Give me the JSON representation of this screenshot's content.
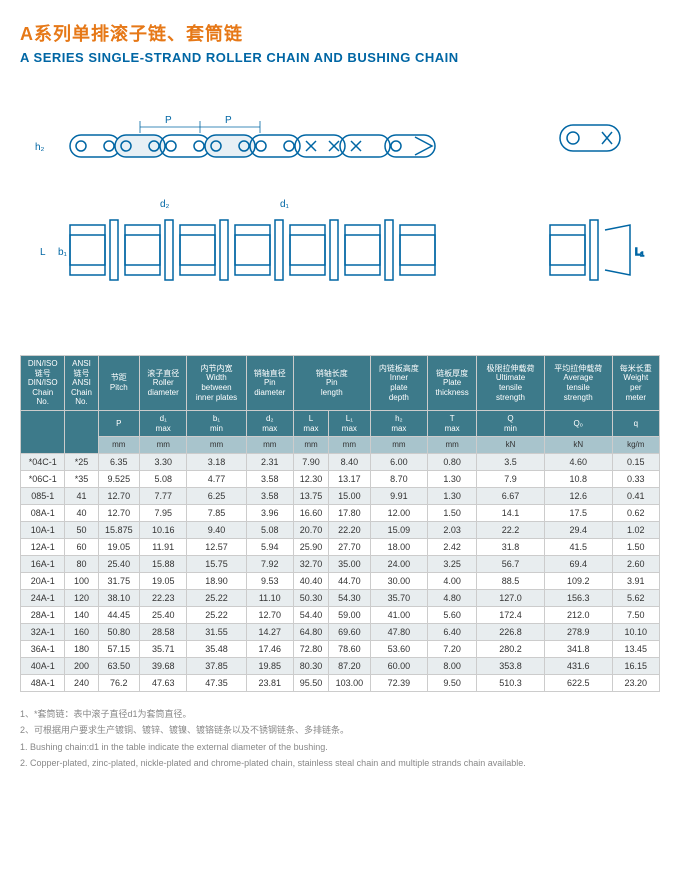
{
  "titles": {
    "cn": "A系列单排滚子链、套筒链",
    "en": "A SERIES SINGLE-STRAND ROLLER CHAIN AND BUSHING CHAIN"
  },
  "diagram": {
    "labels": {
      "P": "P",
      "h2": "h₂",
      "d2": "d₂",
      "d1": "d₁",
      "L": "L",
      "b1": "b₁",
      "L1": "L₁"
    },
    "stroke_color": "#0066a4"
  },
  "table": {
    "header_bg": "#3d7a8a",
    "header_fg": "#ffffff",
    "subheader_bg": "#a8c4cc",
    "row_odd_bg": "#e8edef",
    "row_even_bg": "#ffffff",
    "columns": [
      {
        "cn": "DIN/ISO\n链号",
        "en": "DIN/ISO\nChain\nNo.",
        "sub": "",
        "unit": ""
      },
      {
        "cn": "ANSI\n链号",
        "en": "ANSI\nChain\nNo.",
        "sub": "",
        "unit": ""
      },
      {
        "cn": "节距",
        "en": "Pitch",
        "sub": "P",
        "unit": "mm"
      },
      {
        "cn": "滚子直径",
        "en": "Roller\ndiameter",
        "sub": "d₁\nmax",
        "unit": "mm"
      },
      {
        "cn": "内节内宽",
        "en": "Width\nbetween\ninner plates",
        "sub": "b₁\nmin",
        "unit": "mm"
      },
      {
        "cn": "销轴直径",
        "en": "Pin\ndiameter",
        "sub": "d₂\nmax",
        "unit": "mm"
      },
      {
        "cn": "销轴长度",
        "en": "Pin\nlength",
        "sub": "L\nmax",
        "unit": "mm",
        "sub2": "L₁\nmax",
        "unit2": "mm"
      },
      {
        "cn": "内链板高度",
        "en": "Inner\nplate\ndepth",
        "sub": "h₂\nmax",
        "unit": "mm"
      },
      {
        "cn": "链板厚度",
        "en": "Plate\nthickness",
        "sub": "T\nmax",
        "unit": "mm"
      },
      {
        "cn": "极限拉伸载荷",
        "en": "Ultimate\ntensile\nstrength",
        "sub": "Q\nmin",
        "unit": "kN"
      },
      {
        "cn": "平均拉伸载荷",
        "en": "Average\ntensile\nstrength",
        "sub": "Q₀",
        "unit": "kN"
      },
      {
        "cn": "每米长重",
        "en": "Weight\nper\nmeter",
        "sub": "q",
        "unit": "kg/m"
      }
    ],
    "rows": [
      [
        "*04C-1",
        "*25",
        "6.35",
        "3.30",
        "3.18",
        "2.31",
        "7.90",
        "8.40",
        "6.00",
        "0.80",
        "3.5",
        "4.60",
        "0.15"
      ],
      [
        "*06C-1",
        "*35",
        "9.525",
        "5.08",
        "4.77",
        "3.58",
        "12.30",
        "13.17",
        "8.70",
        "1.30",
        "7.9",
        "10.8",
        "0.33"
      ],
      [
        "085-1",
        "41",
        "12.70",
        "7.77",
        "6.25",
        "3.58",
        "13.75",
        "15.00",
        "9.91",
        "1.30",
        "6.67",
        "12.6",
        "0.41"
      ],
      [
        "08A-1",
        "40",
        "12.70",
        "7.95",
        "7.85",
        "3.96",
        "16.60",
        "17.80",
        "12.00",
        "1.50",
        "14.1",
        "17.5",
        "0.62"
      ],
      [
        "10A-1",
        "50",
        "15.875",
        "10.16",
        "9.40",
        "5.08",
        "20.70",
        "22.20",
        "15.09",
        "2.03",
        "22.2",
        "29.4",
        "1.02"
      ],
      [
        "12A-1",
        "60",
        "19.05",
        "11.91",
        "12.57",
        "5.94",
        "25.90",
        "27.70",
        "18.00",
        "2.42",
        "31.8",
        "41.5",
        "1.50"
      ],
      [
        "16A-1",
        "80",
        "25.40",
        "15.88",
        "15.75",
        "7.92",
        "32.70",
        "35.00",
        "24.00",
        "3.25",
        "56.7",
        "69.4",
        "2.60"
      ],
      [
        "20A-1",
        "100",
        "31.75",
        "19.05",
        "18.90",
        "9.53",
        "40.40",
        "44.70",
        "30.00",
        "4.00",
        "88.5",
        "109.2",
        "3.91"
      ],
      [
        "24A-1",
        "120",
        "38.10",
        "22.23",
        "25.22",
        "11.10",
        "50.30",
        "54.30",
        "35.70",
        "4.80",
        "127.0",
        "156.3",
        "5.62"
      ],
      [
        "28A-1",
        "140",
        "44.45",
        "25.40",
        "25.22",
        "12.70",
        "54.40",
        "59.00",
        "41.00",
        "5.60",
        "172.4",
        "212.0",
        "7.50"
      ],
      [
        "32A-1",
        "160",
        "50.80",
        "28.58",
        "31.55",
        "14.27",
        "64.80",
        "69.60",
        "47.80",
        "6.40",
        "226.8",
        "278.9",
        "10.10"
      ],
      [
        "36A-1",
        "180",
        "57.15",
        "35.71",
        "35.48",
        "17.46",
        "72.80",
        "78.60",
        "53.60",
        "7.20",
        "280.2",
        "341.8",
        "13.45"
      ],
      [
        "40A-1",
        "200",
        "63.50",
        "39.68",
        "37.85",
        "19.85",
        "80.30",
        "87.20",
        "60.00",
        "8.00",
        "353.8",
        "431.6",
        "16.15"
      ],
      [
        "48A-1",
        "240",
        "76.2",
        "47.63",
        "47.35",
        "23.81",
        "95.50",
        "103.00",
        "72.39",
        "9.50",
        "510.3",
        "622.5",
        "23.20"
      ]
    ]
  },
  "notes": {
    "cn1": "1、*套筒链：表中滚子直径d1为套筒直径。",
    "cn2": "2、可根据用户要求生产镀铜、镀锌、镀镍、镀铬链条以及不锈钢链条、多排链条。",
    "en1": "1. Bushing chain:d1 in the table indicate the external diameter of the bushing.",
    "en2": "2. Copper-plated, zinc-plated, nickle-plated and chrome-plated chain, stainless steal chain and multiple strands chain available."
  }
}
